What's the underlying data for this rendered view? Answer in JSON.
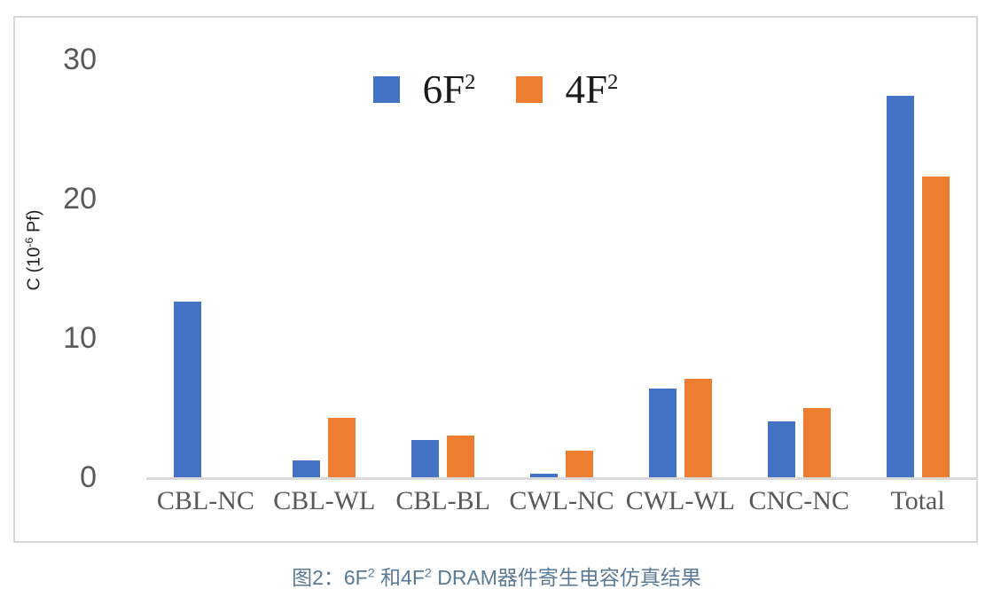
{
  "figure": {
    "caption": {
      "prefix": "图2：6F",
      "sup1": "2",
      "mid": " 和4F",
      "sup2": "2",
      "suffix": " DRAM器件寄生电容仿真结果"
    }
  },
  "axes": {
    "y_title": {
      "prefix": "C  (10",
      "sup": "-6",
      "suffix": " Pf)"
    }
  },
  "chart_data": {
    "type": "bar",
    "title": "",
    "categories": [
      "CBL-NC",
      "CBL-WL",
      "CBL-BL",
      "CWL-NC",
      "CWL-WL",
      "CNC-NC",
      "Total"
    ],
    "series": [
      {
        "name": "6F²",
        "label_base": "6F",
        "label_sup": "2",
        "color": "#4472C4",
        "values": [
          12.6,
          1.2,
          2.7,
          0.25,
          6.4,
          4.0,
          27.4
        ]
      },
      {
        "name": "4F²",
        "label_base": "4F",
        "label_sup": "2",
        "color": "#ED7D31",
        "values": [
          0,
          4.3,
          3.0,
          1.9,
          7.1,
          5.0,
          21.6
        ]
      }
    ],
    "xlabel": "",
    "ylabel": "C (10^-6 Pf)",
    "yticks": [
      0,
      10,
      20,
      30
    ],
    "ylim": [
      0,
      32
    ],
    "grid": false,
    "legend_position": "top-center",
    "bar_baseline_color": "#D9D9D9"
  },
  "colors": {
    "frame_border": "#D9D9D9",
    "axis_line": "#D9D9D9",
    "tick_text": "#595959",
    "category_text": "#595959",
    "legend_text": "#1A1A1A",
    "y_title_text": "#222222",
    "caption_text": "#5B7A96",
    "series_blue": "#4472C4",
    "series_orange": "#ED7D31"
  }
}
